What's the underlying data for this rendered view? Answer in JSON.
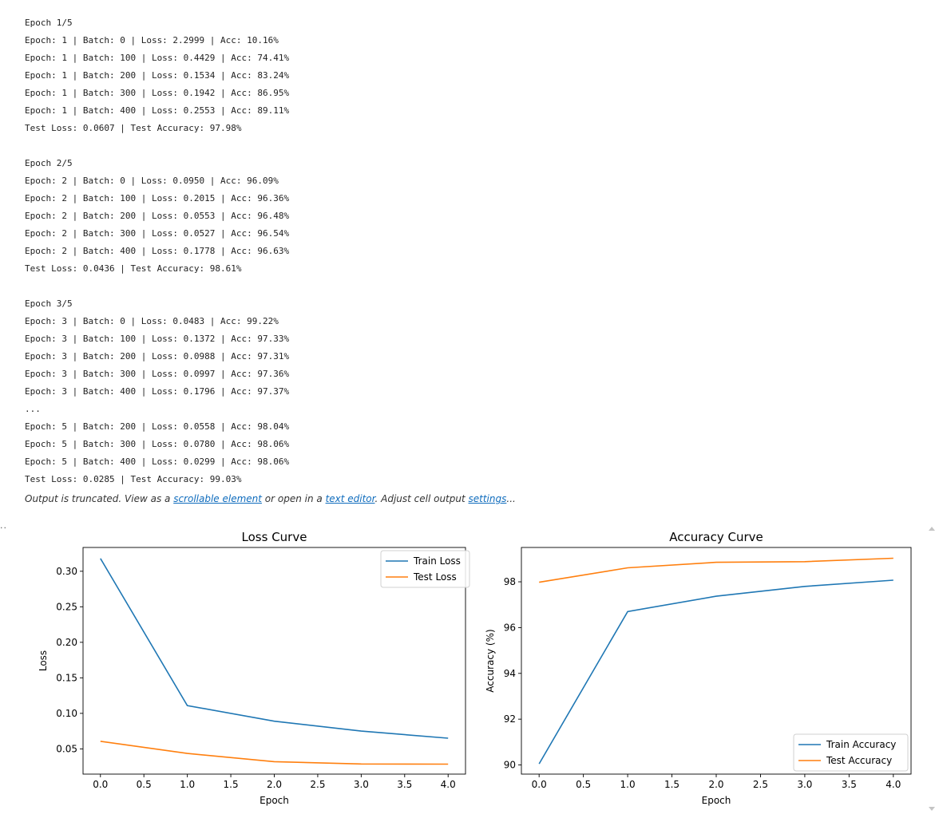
{
  "output_log": {
    "lines": [
      "Epoch 1/5",
      "Epoch: 1 | Batch: 0 | Loss: 2.2999 | Acc: 10.16%",
      "Epoch: 1 | Batch: 100 | Loss: 0.4429 | Acc: 74.41%",
      "Epoch: 1 | Batch: 200 | Loss: 0.1534 | Acc: 83.24%",
      "Epoch: 1 | Batch: 300 | Loss: 0.1942 | Acc: 86.95%",
      "Epoch: 1 | Batch: 400 | Loss: 0.2553 | Acc: 89.11%",
      "Test Loss: 0.0607 | Test Accuracy: 97.98%",
      "",
      "Epoch 2/5",
      "Epoch: 2 | Batch: 0 | Loss: 0.0950 | Acc: 96.09%",
      "Epoch: 2 | Batch: 100 | Loss: 0.2015 | Acc: 96.36%",
      "Epoch: 2 | Batch: 200 | Loss: 0.0553 | Acc: 96.48%",
      "Epoch: 2 | Batch: 300 | Loss: 0.0527 | Acc: 96.54%",
      "Epoch: 2 | Batch: 400 | Loss: 0.1778 | Acc: 96.63%",
      "Test Loss: 0.0436 | Test Accuracy: 98.61%",
      "",
      "Epoch 3/5",
      "Epoch: 3 | Batch: 0 | Loss: 0.0483 | Acc: 99.22%",
      "Epoch: 3 | Batch: 100 | Loss: 0.1372 | Acc: 97.33%",
      "Epoch: 3 | Batch: 200 | Loss: 0.0988 | Acc: 97.31%",
      "Epoch: 3 | Batch: 300 | Loss: 0.0997 | Acc: 97.36%",
      "Epoch: 3 | Batch: 400 | Loss: 0.1796 | Acc: 97.37%",
      "...",
      "Epoch: 5 | Batch: 200 | Loss: 0.0558 | Acc: 98.04%",
      "Epoch: 5 | Batch: 300 | Loss: 0.0780 | Acc: 98.06%",
      "Epoch: 5 | Batch: 400 | Loss: 0.0299 | Acc: 98.06%",
      "Test Loss: 0.0285 | Test Accuracy: 99.03%"
    ]
  },
  "truncation_notice": {
    "prefix": "Output is truncated. View as a ",
    "scrollable_link": "scrollable element",
    "middle": " or open in a ",
    "editor_link": "text editor",
    "after_editor": ". Adjust cell output ",
    "settings_link": "settings",
    "suffix": "..."
  },
  "cell_gutter": {
    "ellipsis": ".."
  },
  "colors": {
    "train": "#1f77b4",
    "test": "#ff7f0e",
    "link": "#0f6cbd"
  },
  "chart_data": [
    {
      "type": "line",
      "title": "Loss Curve",
      "xlabel": "Epoch",
      "ylabel": "Loss",
      "x": [
        0,
        1,
        2,
        3,
        4
      ],
      "xlim": [
        -0.2,
        4.2
      ],
      "ylim": [
        0.0145,
        0.3335
      ],
      "xticks": [
        0.0,
        0.5,
        1.0,
        1.5,
        2.0,
        2.5,
        3.0,
        3.5,
        4.0
      ],
      "xtick_labels": [
        "0.0",
        "0.5",
        "1.0",
        "1.5",
        "2.0",
        "2.5",
        "3.0",
        "3.5",
        "4.0"
      ],
      "yticks": [
        0.05,
        0.1,
        0.15,
        0.2,
        0.25,
        0.3
      ],
      "ytick_labels": [
        "0.05",
        "0.10",
        "0.15",
        "0.20",
        "0.25",
        "0.30"
      ],
      "series": [
        {
          "name": "Train Loss",
          "values": [
            0.318,
            0.111,
            0.089,
            0.075,
            0.065
          ]
        },
        {
          "name": "Test Loss",
          "values": [
            0.0607,
            0.0436,
            0.032,
            0.0288,
            0.0285
          ]
        }
      ],
      "legend": "top-right",
      "grid": false
    },
    {
      "type": "line",
      "title": "Accuracy Curve",
      "xlabel": "Epoch",
      "ylabel": "Accuracy (%)",
      "x": [
        0,
        1,
        2,
        3,
        4
      ],
      "xlim": [
        -0.2,
        4.2
      ],
      "ylim": [
        89.6,
        99.5
      ],
      "xticks": [
        0.0,
        0.5,
        1.0,
        1.5,
        2.0,
        2.5,
        3.0,
        3.5,
        4.0
      ],
      "xtick_labels": [
        "0.0",
        "0.5",
        "1.0",
        "1.5",
        "2.0",
        "2.5",
        "3.0",
        "3.5",
        "4.0"
      ],
      "yticks": [
        90,
        92,
        94,
        96,
        98
      ],
      "ytick_labels": [
        "90",
        "92",
        "94",
        "96",
        "98"
      ],
      "series": [
        {
          "name": "Train Accuracy",
          "values": [
            90.05,
            96.7,
            97.37,
            97.8,
            98.07
          ]
        },
        {
          "name": "Test Accuracy",
          "values": [
            97.98,
            98.61,
            98.85,
            98.88,
            99.03
          ]
        }
      ],
      "legend": "bottom-right",
      "grid": false
    }
  ]
}
